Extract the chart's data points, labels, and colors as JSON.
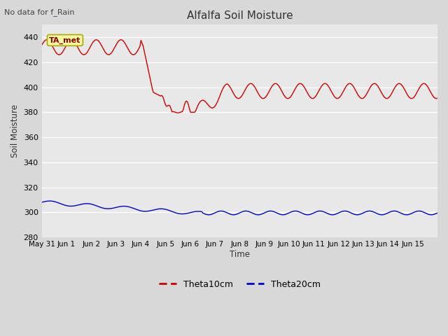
{
  "title": "Alfalfa Soil Moisture",
  "no_data_text": "No data for f_Rain",
  "ylabel": "Soil Moisture",
  "xlabel": "Time",
  "ylim": [
    280,
    450
  ],
  "yticks": [
    280,
    300,
    320,
    340,
    360,
    380,
    400,
    420,
    440
  ],
  "line1_color": "#cc0000",
  "line2_color": "#0000cc",
  "legend_label1": "Theta10cm",
  "legend_label2": "Theta20cm",
  "annotation_text": "TA_met",
  "x_tick_labels": [
    "May 31",
    "Jun 1",
    "Jun 2",
    "Jun 3",
    "Jun 4",
    "Jun 5",
    "Jun 6",
    "Jun 7",
    "Jun 8",
    "Jun 9",
    "Jun 10",
    "Jun 11",
    "Jun 12",
    "Jun 13",
    "Jun 14",
    "Jun 15"
  ],
  "figsize": [
    6.4,
    4.8
  ],
  "dpi": 100
}
